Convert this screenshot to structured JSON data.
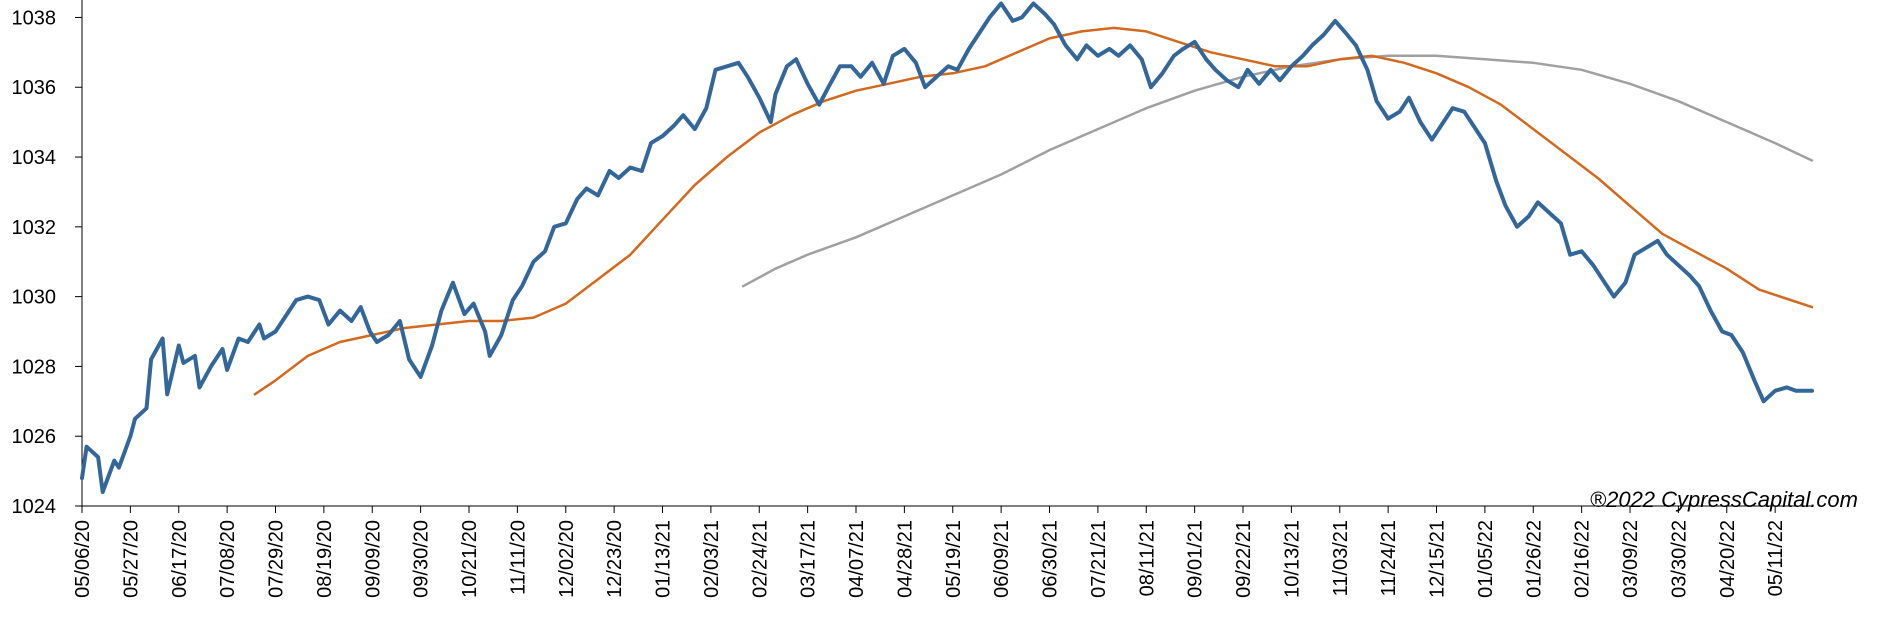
{
  "chart_data": {
    "type": "line",
    "title": "",
    "xlabel": "",
    "ylabel": "",
    "ylim": [
      1024,
      1038.5
    ],
    "yticks": [
      1024,
      1026,
      1028,
      1030,
      1032,
      1034,
      1036,
      1038
    ],
    "ytick_labels": [
      "1024",
      "1026",
      "1028",
      "1030",
      "1032",
      "1034",
      "1036",
      "1038"
    ],
    "x_start": "05/06/20",
    "x_end": "05/27/22",
    "x_tick_labels": [
      "05/06/20",
      "05/27/20",
      "06/17/20",
      "07/08/20",
      "07/29/20",
      "08/19/20",
      "09/09/20",
      "09/30/20",
      "10/21/20",
      "11/11/20",
      "12/02/20",
      "12/23/20",
      "01/13/21",
      "02/03/21",
      "02/24/21",
      "03/17/21",
      "04/07/21",
      "04/28/21",
      "05/19/21",
      "06/09/21",
      "06/30/21",
      "07/21/21",
      "08/11/21",
      "09/01/21",
      "09/22/21",
      "10/13/21",
      "11/03/21",
      "11/24/21",
      "12/15/21",
      "01/05/22",
      "01/26/22",
      "02/16/22",
      "03/09/22",
      "03/30/22",
      "04/20/22",
      "05/11/22"
    ],
    "grid": false,
    "legend": "none",
    "copyright": "®2022 CypressCapital.com",
    "series": [
      {
        "color": "#336699",
        "width": 4,
        "points": [
          [
            "05/06/20",
            1024.8
          ],
          [
            "05/08/20",
            1025.7
          ],
          [
            "05/13/20",
            1025.4
          ],
          [
            "05/15/20",
            1024.4
          ],
          [
            "05/20/20",
            1025.3
          ],
          [
            "05/22/20",
            1025.1
          ],
          [
            "05/27/20",
            1026.0
          ],
          [
            "05/29/20",
            1026.5
          ],
          [
            "06/03/20",
            1026.8
          ],
          [
            "06/05/20",
            1028.2
          ],
          [
            "06/10/20",
            1028.8
          ],
          [
            "06/12/20",
            1027.2
          ],
          [
            "06/17/20",
            1028.6
          ],
          [
            "06/19/20",
            1028.1
          ],
          [
            "06/24/20",
            1028.3
          ],
          [
            "06/26/20",
            1027.4
          ],
          [
            "07/01/20",
            1028.0
          ],
          [
            "07/06/20",
            1028.5
          ],
          [
            "07/08/20",
            1027.9
          ],
          [
            "07/13/20",
            1028.8
          ],
          [
            "07/17/20",
            1028.7
          ],
          [
            "07/22/20",
            1029.2
          ],
          [
            "07/24/20",
            1028.8
          ],
          [
            "07/29/20",
            1029.0
          ],
          [
            "08/03/20",
            1029.5
          ],
          [
            "08/07/20",
            1029.9
          ],
          [
            "08/12/20",
            1030.0
          ],
          [
            "08/17/20",
            1029.9
          ],
          [
            "08/21/20",
            1029.2
          ],
          [
            "08/26/20",
            1029.6
          ],
          [
            "08/31/20",
            1029.3
          ],
          [
            "09/04/20",
            1029.7
          ],
          [
            "09/08/20",
            1029.0
          ],
          [
            "09/11/20",
            1028.7
          ],
          [
            "09/16/20",
            1028.9
          ],
          [
            "09/21/20",
            1029.3
          ],
          [
            "09/25/20",
            1028.2
          ],
          [
            "09/30/20",
            1027.7
          ],
          [
            "10/05/20",
            1028.6
          ],
          [
            "10/09/20",
            1029.6
          ],
          [
            "10/14/20",
            1030.4
          ],
          [
            "10/19/20",
            1029.5
          ],
          [
            "10/23/20",
            1029.8
          ],
          [
            "10/28/20",
            1029.0
          ],
          [
            "10/30/20",
            1028.3
          ],
          [
            "11/04/20",
            1028.9
          ],
          [
            "11/09/20",
            1029.9
          ],
          [
            "11/13/20",
            1030.3
          ],
          [
            "11/18/20",
            1031.0
          ],
          [
            "11/23/20",
            1031.3
          ],
          [
            "11/27/20",
            1032.0
          ],
          [
            "12/02/20",
            1032.1
          ],
          [
            "12/07/20",
            1032.8
          ],
          [
            "12/11/20",
            1033.1
          ],
          [
            "12/16/20",
            1032.9
          ],
          [
            "12/21/20",
            1033.6
          ],
          [
            "12/25/20",
            1033.4
          ],
          [
            "12/30/20",
            1033.7
          ],
          [
            "01/04/21",
            1033.6
          ],
          [
            "01/08/21",
            1034.4
          ],
          [
            "01/13/21",
            1034.6
          ],
          [
            "01/18/21",
            1034.9
          ],
          [
            "01/22/21",
            1035.2
          ],
          [
            "01/27/21",
            1034.8
          ],
          [
            "02/01/21",
            1035.4
          ],
          [
            "02/05/21",
            1036.5
          ],
          [
            "02/10/21",
            1036.6
          ],
          [
            "02/15/21",
            1036.7
          ],
          [
            "02/19/21",
            1036.3
          ],
          [
            "02/24/21",
            1035.7
          ],
          [
            "03/01/21",
            1035.0
          ],
          [
            "03/03/21",
            1035.8
          ],
          [
            "03/08/21",
            1036.6
          ],
          [
            "03/12/21",
            1036.8
          ],
          [
            "03/17/21",
            1036.1
          ],
          [
            "03/22/21",
            1035.5
          ],
          [
            "03/26/21",
            1036.0
          ],
          [
            "03/31/21",
            1036.6
          ],
          [
            "04/05/21",
            1036.6
          ],
          [
            "04/09/21",
            1036.3
          ],
          [
            "04/14/21",
            1036.7
          ],
          [
            "04/19/21",
            1036.1
          ],
          [
            "04/23/21",
            1036.9
          ],
          [
            "04/28/21",
            1037.1
          ],
          [
            "05/03/21",
            1036.7
          ],
          [
            "05/07/21",
            1036.0
          ],
          [
            "05/12/21",
            1036.3
          ],
          [
            "05/17/21",
            1036.6
          ],
          [
            "05/21/21",
            1036.5
          ],
          [
            "05/26/21",
            1037.1
          ],
          [
            "05/31/21",
            1037.6
          ],
          [
            "06/04/21",
            1038.0
          ],
          [
            "06/09/21",
            1038.4
          ],
          [
            "06/14/21",
            1037.9
          ],
          [
            "06/18/21",
            1038.0
          ],
          [
            "06/23/21",
            1038.4
          ],
          [
            "06/28/21",
            1038.1
          ],
          [
            "07/02/21",
            1037.8
          ],
          [
            "07/07/21",
            1037.2
          ],
          [
            "07/12/21",
            1036.8
          ],
          [
            "07/16/21",
            1037.2
          ],
          [
            "07/21/21",
            1036.9
          ],
          [
            "07/26/21",
            1037.1
          ],
          [
            "07/30/21",
            1036.9
          ],
          [
            "08/04/21",
            1037.2
          ],
          [
            "08/09/21",
            1036.8
          ],
          [
            "08/13/21",
            1036.0
          ],
          [
            "08/18/21",
            1036.4
          ],
          [
            "08/23/21",
            1036.9
          ],
          [
            "08/27/21",
            1037.1
          ],
          [
            "09/01/21",
            1037.3
          ],
          [
            "09/06/21",
            1036.8
          ],
          [
            "09/10/21",
            1036.5
          ],
          [
            "09/15/21",
            1036.2
          ],
          [
            "09/20/21",
            1036.0
          ],
          [
            "09/24/21",
            1036.5
          ],
          [
            "09/29/21",
            1036.1
          ],
          [
            "10/04/21",
            1036.5
          ],
          [
            "10/08/21",
            1036.2
          ],
          [
            "10/13/21",
            1036.6
          ],
          [
            "10/18/21",
            1036.9
          ],
          [
            "10/22/21",
            1037.2
          ],
          [
            "10/27/21",
            1037.5
          ],
          [
            "11/01/21",
            1037.9
          ],
          [
            "11/05/21",
            1037.6
          ],
          [
            "11/10/21",
            1037.2
          ],
          [
            "11/15/21",
            1036.5
          ],
          [
            "11/19/21",
            1035.6
          ],
          [
            "11/24/21",
            1035.1
          ],
          [
            "11/29/21",
            1035.3
          ],
          [
            "12/03/21",
            1035.7
          ],
          [
            "12/08/21",
            1035.0
          ],
          [
            "12/13/21",
            1034.5
          ],
          [
            "12/17/21",
            1034.9
          ],
          [
            "12/22/21",
            1035.4
          ],
          [
            "12/27/21",
            1035.3
          ],
          [
            "12/31/21",
            1034.9
          ],
          [
            "01/05/22",
            1034.4
          ],
          [
            "01/10/22",
            1033.3
          ],
          [
            "01/14/22",
            1032.6
          ],
          [
            "01/19/22",
            1032.0
          ],
          [
            "01/24/22",
            1032.3
          ],
          [
            "01/28/22",
            1032.7
          ],
          [
            "02/02/22",
            1032.4
          ],
          [
            "02/07/22",
            1032.1
          ],
          [
            "02/11/22",
            1031.2
          ],
          [
            "02/16/22",
            1031.3
          ],
          [
            "02/21/22",
            1030.9
          ],
          [
            "02/25/22",
            1030.5
          ],
          [
            "03/02/22",
            1030.0
          ],
          [
            "03/07/22",
            1030.4
          ],
          [
            "03/11/22",
            1031.2
          ],
          [
            "03/16/22",
            1031.4
          ],
          [
            "03/21/22",
            1031.6
          ],
          [
            "03/25/22",
            1031.2
          ],
          [
            "03/30/22",
            1030.9
          ],
          [
            "04/04/22",
            1030.6
          ],
          [
            "04/08/22",
            1030.3
          ],
          [
            "04/13/22",
            1029.6
          ],
          [
            "04/18/22",
            1029.0
          ],
          [
            "04/22/22",
            1028.9
          ],
          [
            "04/27/22",
            1028.4
          ],
          [
            "05/02/22",
            1027.6
          ],
          [
            "05/06/22",
            1027.0
          ],
          [
            "05/11/22",
            1027.3
          ],
          [
            "05/16/22",
            1027.4
          ],
          [
            "05/20/22",
            1027.3
          ],
          [
            "05/27/22",
            1027.3
          ]
        ]
      },
      {
        "color": "#D2691E",
        "width": 2.5,
        "points": [
          [
            "07/20/20",
            1027.2
          ],
          [
            "07/29/20",
            1027.6
          ],
          [
            "08/12/20",
            1028.3
          ],
          [
            "08/26/20",
            1028.7
          ],
          [
            "09/09/20",
            1028.9
          ],
          [
            "09/23/20",
            1029.1
          ],
          [
            "10/07/20",
            1029.2
          ],
          [
            "10/21/20",
            1029.3
          ],
          [
            "11/04/20",
            1029.3
          ],
          [
            "11/18/20",
            1029.4
          ],
          [
            "12/02/20",
            1029.8
          ],
          [
            "12/16/20",
            1030.5
          ],
          [
            "12/30/20",
            1031.2
          ],
          [
            "01/13/21",
            1032.2
          ],
          [
            "01/27/21",
            1033.2
          ],
          [
            "02/10/21",
            1034.0
          ],
          [
            "02/24/21",
            1034.7
          ],
          [
            "03/10/21",
            1035.2
          ],
          [
            "03/24/21",
            1035.6
          ],
          [
            "04/07/21",
            1035.9
          ],
          [
            "04/21/21",
            1036.1
          ],
          [
            "05/05/21",
            1036.3
          ],
          [
            "05/19/21",
            1036.4
          ],
          [
            "06/02/21",
            1036.6
          ],
          [
            "06/16/21",
            1037.0
          ],
          [
            "06/30/21",
            1037.4
          ],
          [
            "07/14/21",
            1037.6
          ],
          [
            "07/28/21",
            1037.7
          ],
          [
            "08/11/21",
            1037.6
          ],
          [
            "08/25/21",
            1037.3
          ],
          [
            "09/08/21",
            1037.0
          ],
          [
            "09/22/21",
            1036.8
          ],
          [
            "10/06/21",
            1036.6
          ],
          [
            "10/20/21",
            1036.6
          ],
          [
            "11/03/21",
            1036.8
          ],
          [
            "11/17/21",
            1036.9
          ],
          [
            "12/01/21",
            1036.7
          ],
          [
            "12/15/21",
            1036.4
          ],
          [
            "12/29/21",
            1036.0
          ],
          [
            "01/12/22",
            1035.5
          ],
          [
            "01/26/22",
            1034.8
          ],
          [
            "02/09/22",
            1034.1
          ],
          [
            "02/23/22",
            1033.4
          ],
          [
            "03/09/22",
            1032.6
          ],
          [
            "03/23/22",
            1031.8
          ],
          [
            "04/06/22",
            1031.3
          ],
          [
            "04/20/22",
            1030.8
          ],
          [
            "05/04/22",
            1030.2
          ],
          [
            "05/27/22",
            1029.7
          ]
        ]
      },
      {
        "color": "#A0A0A0",
        "width": 2.5,
        "points": [
          [
            "02/17/21",
            1030.3
          ],
          [
            "03/03/21",
            1030.8
          ],
          [
            "03/17/21",
            1031.2
          ],
          [
            "04/07/21",
            1031.7
          ],
          [
            "04/28/21",
            1032.3
          ],
          [
            "05/19/21",
            1032.9
          ],
          [
            "06/09/21",
            1033.5
          ],
          [
            "06/30/21",
            1034.2
          ],
          [
            "07/21/21",
            1034.8
          ],
          [
            "08/11/21",
            1035.4
          ],
          [
            "09/01/21",
            1035.9
          ],
          [
            "09/22/21",
            1036.3
          ],
          [
            "10/13/21",
            1036.6
          ],
          [
            "11/03/21",
            1036.8
          ],
          [
            "11/24/21",
            1036.9
          ],
          [
            "12/15/21",
            1036.9
          ],
          [
            "01/05/22",
            1036.8
          ],
          [
            "01/26/22",
            1036.7
          ],
          [
            "02/16/22",
            1036.5
          ],
          [
            "03/09/22",
            1036.1
          ],
          [
            "03/30/22",
            1035.6
          ],
          [
            "04/20/22",
            1035.0
          ],
          [
            "05/11/22",
            1034.4
          ],
          [
            "05/27/22",
            1033.9
          ]
        ]
      }
    ]
  }
}
